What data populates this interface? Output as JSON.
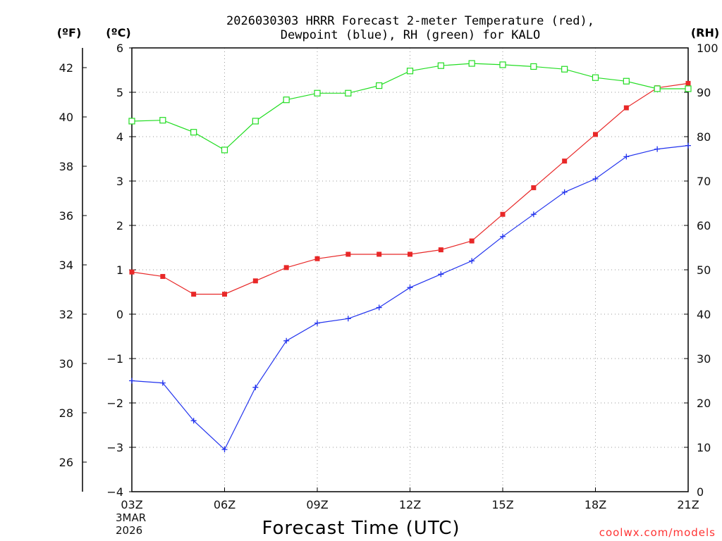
{
  "chart_data": {
    "type": "line",
    "title_lines": [
      "2026030303 HRRR Forecast 2-meter Temperature (red),",
      "Dewpoint (blue), RH (green) for KALO"
    ],
    "xlabel": "Forecast Time (UTC)",
    "date_lines": [
      "3MAR",
      "2026"
    ],
    "credit": "coolwx.com/models",
    "x_hours": [
      3,
      4,
      5,
      6,
      7,
      8,
      9,
      10,
      11,
      12,
      13,
      14,
      15,
      16,
      17,
      18,
      19,
      20,
      21
    ],
    "x_ticks": [
      {
        "hour": 3,
        "label": "03Z"
      },
      {
        "hour": 6,
        "label": "06Z"
      },
      {
        "hour": 9,
        "label": "09Z"
      },
      {
        "hour": 12,
        "label": "12Z"
      },
      {
        "hour": 15,
        "label": "15Z"
      },
      {
        "hour": 18,
        "label": "18Z"
      },
      {
        "hour": 21,
        "label": "21Z"
      }
    ],
    "axes": {
      "celsius": {
        "unit_label": "(ºC)",
        "range": [
          -4,
          6
        ],
        "ticks": [
          "−4",
          "−3",
          "−2",
          "−1",
          "0",
          "1",
          "2",
          "3",
          "4",
          "5",
          "6"
        ]
      },
      "fahrenheit": {
        "unit_label": "(ºF)",
        "ticks": [
          "26",
          "28",
          "30",
          "32",
          "34",
          "36",
          "38",
          "40",
          "42"
        ]
      },
      "rh": {
        "unit_label": "(RH)",
        "range": [
          0,
          100
        ],
        "ticks": [
          "0",
          "10",
          "20",
          "30",
          "40",
          "50",
          "60",
          "70",
          "80",
          "90",
          "100"
        ]
      }
    },
    "series": [
      {
        "name": "Temperature",
        "axis": "celsius",
        "color": "#e82828",
        "marker": "filled-square",
        "values": [
          0.95,
          0.85,
          0.45,
          0.45,
          0.75,
          1.05,
          1.25,
          1.35,
          1.35,
          1.35,
          1.45,
          1.65,
          2.25,
          2.85,
          3.45,
          4.05,
          4.65,
          5.1,
          5.2
        ]
      },
      {
        "name": "Dewpoint",
        "axis": "celsius",
        "color": "#2233ee",
        "marker": "plus",
        "values": [
          -1.5,
          -1.55,
          -2.4,
          -3.05,
          -1.65,
          -0.6,
          -0.2,
          -0.1,
          0.15,
          0.6,
          0.9,
          1.2,
          1.75,
          2.25,
          2.75,
          3.05,
          3.55,
          3.72,
          3.8
        ]
      },
      {
        "name": "RH",
        "axis": "rh",
        "color": "#22dd22",
        "marker": "open-square",
        "values": [
          83.5,
          83.7,
          81,
          77,
          83.5,
          88.3,
          89.8,
          89.8,
          91.5,
          94.8,
          96,
          96.5,
          96.2,
          95.8,
          95.2,
          93.3,
          92.5,
          90.8,
          90.8
        ]
      }
    ],
    "grid": true
  }
}
